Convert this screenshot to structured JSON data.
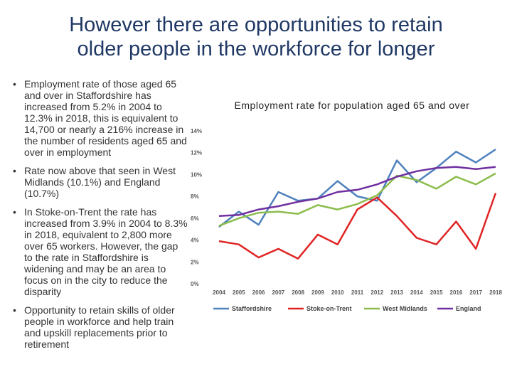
{
  "slide": {
    "title_line1": "However there are opportunities to retain",
    "title_line2": "older people in the workforce for longer"
  },
  "bullets": [
    "Employment rate of those aged 65 and over in Staffordshire has increased from 5.2% in 2004 to 12.3% in 2018, this is equivalent to 14,700 or nearly a 216% increase in the number of residents aged 65 and over in employment",
    "Rate now above that seen in West Midlands (10.1%) and England (10.7%)",
    "In Stoke-on-Trent the rate has increased from 3.9% in 2004 to 8.3% in 2018, equivalent to 2,800 more over 65 workers. However, the gap to the rate in Staffordshire is widening and may be an area to focus on in the city to reduce the disparity",
    "Opportunity to retain skills of older people in workforce and help train and upskill replacements prior to retirement"
  ],
  "chart_data": {
    "type": "line",
    "title": "Employment rate for population aged 65 and over",
    "x": [
      "2004",
      "2005",
      "2006",
      "2007",
      "2008",
      "2009",
      "2010",
      "2011",
      "2012",
      "2013",
      "2014",
      "2015",
      "2016",
      "2017",
      "2018"
    ],
    "ylim": [
      0,
      14
    ],
    "y_ticks": [
      "0%",
      "2%",
      "4%",
      "6%",
      "8%",
      "10%",
      "12%",
      "14%"
    ],
    "grid": false,
    "legend_position": "bottom",
    "series": [
      {
        "name": "Staffordshire",
        "color": "#4f81bd",
        "values": [
          5.2,
          6.6,
          5.4,
          8.4,
          7.6,
          7.8,
          9.4,
          8.0,
          7.6,
          11.3,
          9.3,
          10.6,
          12.1,
          11.1,
          12.3
        ]
      },
      {
        "name": "Stoke-on-Trent",
        "color": "#e02424",
        "values": [
          3.9,
          3.6,
          2.4,
          3.2,
          2.3,
          4.5,
          3.6,
          6.8,
          7.9,
          6.2,
          4.2,
          3.6,
          5.7,
          3.2,
          8.3
        ]
      },
      {
        "name": "West Midlands",
        "color": "#8cbd4c",
        "values": [
          5.3,
          6.0,
          6.5,
          6.6,
          6.4,
          7.2,
          6.8,
          7.3,
          8.1,
          9.9,
          9.5,
          8.7,
          9.8,
          9.1,
          10.1
        ]
      },
      {
        "name": "England",
        "color": "#7030a0",
        "values": [
          6.2,
          6.3,
          6.8,
          7.1,
          7.5,
          7.8,
          8.4,
          8.6,
          9.1,
          9.8,
          10.3,
          10.6,
          10.7,
          10.5,
          10.7
        ]
      }
    ]
  }
}
